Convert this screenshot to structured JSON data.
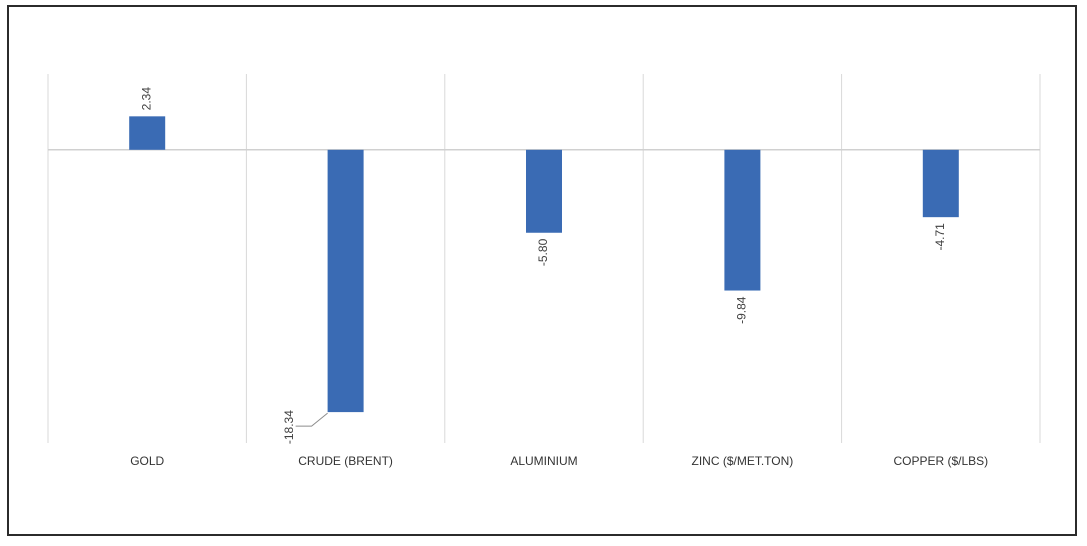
{
  "chart_data": {
    "type": "bar",
    "categories": [
      "GOLD",
      "CRUDE (BRENT)",
      "ALUMINIUM",
      "ZINC ($/MET.TON)",
      "COPPER ($/LBS)"
    ],
    "values": [
      2.34,
      -18.34,
      -5.8,
      -9.84,
      -4.71
    ],
    "data_labels": [
      "2.34",
      "-18.34",
      "-5.80",
      "-9.84",
      "-4.71"
    ],
    "title": "",
    "xlabel": "",
    "ylabel": "",
    "ylim": [
      -20.5,
      5.3
    ],
    "grid": true,
    "legend": "none",
    "colors": {
      "bar": "#3a6bb4",
      "grid": "#d9d9d9",
      "axis": "#d0d0d0",
      "frame": "#2b2b2b",
      "leader": "#8c8c8c"
    }
  }
}
